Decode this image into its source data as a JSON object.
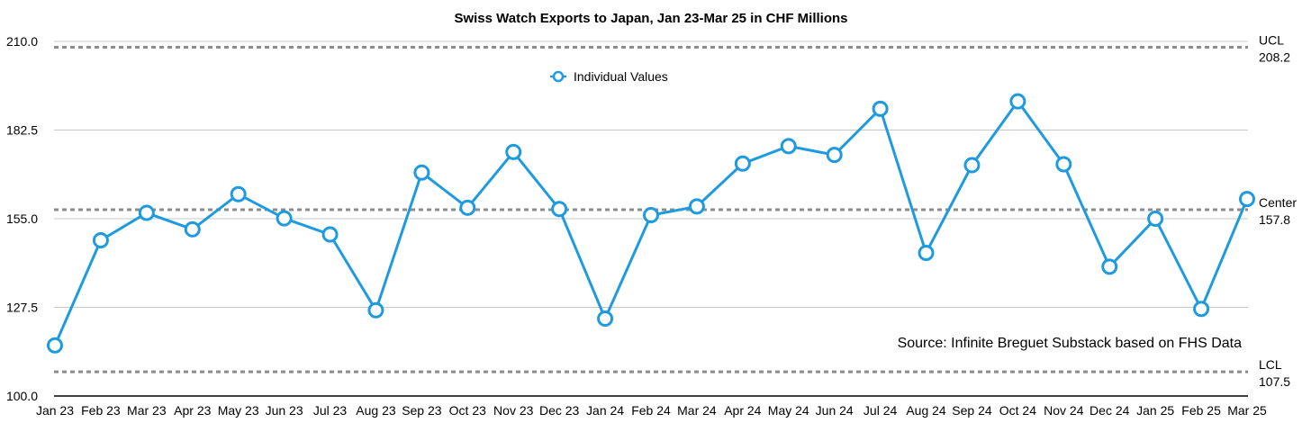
{
  "chart_data": {
    "type": "line",
    "title": "Swiss Watch Exports to Japan, Jan 23-Mar 25 in CHF Millions",
    "xlabel": "",
    "ylabel": "",
    "ylim": [
      100,
      210
    ],
    "yticks": [
      "210.0",
      "182.5",
      "155.0",
      "127.5",
      "100.0"
    ],
    "categories": [
      "Jan 23",
      "Feb 23",
      "Mar 23",
      "Apr 23",
      "May 23",
      "Jun 23",
      "Jul 23",
      "Aug 23",
      "Sep 23",
      "Oct 23",
      "Nov 23",
      "Dec 23",
      "Jan 24",
      "Feb 24",
      "Mar 24",
      "Apr 24",
      "May 24",
      "Jun 24",
      "Jul 24",
      "Aug 24",
      "Sep 24",
      "Oct 24",
      "Nov 24",
      "Dec 24",
      "Jan 25",
      "Feb 25",
      "Mar 25"
    ],
    "series": [
      {
        "name": "Individual Values",
        "color": "#1e9be0",
        "values": [
          115.7,
          148.3,
          156.8,
          151.7,
          162.6,
          155.1,
          150.1,
          126.6,
          169.3,
          158.4,
          175.7,
          158.0,
          124.0,
          156.1,
          158.8,
          172.1,
          177.5,
          174.8,
          189.1,
          144.4,
          171.6,
          191.4,
          171.9,
          140.1,
          155.0,
          127.0,
          161.1
        ]
      }
    ],
    "control_limits": {
      "ucl": {
        "label": "UCL",
        "value": 208.2,
        "value_text": "208.2"
      },
      "center": {
        "label": "Center",
        "value": 157.8,
        "value_text": "157.8"
      },
      "lcl": {
        "label": "LCL",
        "value": 107.5,
        "value_text": "107.5"
      }
    },
    "legend": {
      "label": "Individual Values",
      "position": "top-center"
    },
    "annotation": "Source: Infinite Breguet Substack based on FHS Data",
    "grid": true
  }
}
